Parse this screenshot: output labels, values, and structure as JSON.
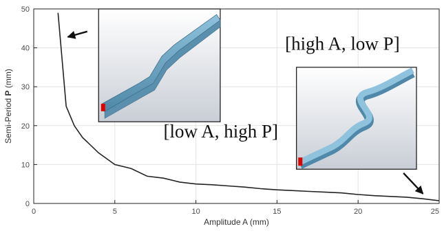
{
  "chart_data": {
    "type": "line",
    "xlabel": "Amplitude A (mm)",
    "ylabel_prefix": "Semi-Period ",
    "ylabel_bold": "P",
    "ylabel_suffix": " (mm)",
    "xlim": [
      0,
      25
    ],
    "ylim": [
      0,
      50
    ],
    "x_ticks": [
      0,
      5,
      10,
      15,
      20,
      25
    ],
    "y_ticks": [
      0,
      10,
      20,
      30,
      40,
      50
    ],
    "x_tick_labels": [
      "0",
      "5",
      "10",
      "15",
      "20",
      "25"
    ],
    "y_tick_labels": [
      "0",
      "10",
      "20",
      "30",
      "40",
      "50"
    ],
    "grid": true,
    "line_color": "#222222",
    "x": [
      1.5,
      2,
      2.5,
      3,
      4,
      5,
      6,
      7,
      8,
      9,
      10,
      11,
      12,
      13,
      14,
      15,
      16,
      17,
      18,
      19,
      20,
      21,
      22,
      23,
      24,
      25
    ],
    "y": [
      49,
      25,
      20,
      17,
      13,
      10,
      9,
      7,
      6.5,
      5.5,
      5,
      4.8,
      4.5,
      4.2,
      3.8,
      3.5,
      3.3,
      3.1,
      2.9,
      2.7,
      2.3,
      2,
      1.8,
      1.6,
      1.2,
      0.7
    ],
    "annotations": [
      {
        "text": "[low A, high P]",
        "x": 8,
        "y": 17
      },
      {
        "text": "[high A, low P]",
        "x": 15.5,
        "y": 39.5
      }
    ],
    "arrows": [
      {
        "from_x": 3.3,
        "from_y": 44.2,
        "to_x": 2.1,
        "to_y": 42.8
      },
      {
        "from_x": 22.8,
        "from_y": 7.8,
        "to_x": 24.0,
        "to_y": 2.5
      }
    ],
    "insets": [
      {
        "shape": "straight-low-amplitude-waveguide",
        "x0": 4,
        "y0": 50,
        "x1": 11.5,
        "y1": 21
      },
      {
        "shape": "high-amplitude-s-bend-waveguide",
        "x0": 16.2,
        "y0": 35,
        "x1": 23.6,
        "y1": 8.8
      }
    ],
    "waveguide_color": "#6fa8c8",
    "port_color": "#e00000"
  }
}
